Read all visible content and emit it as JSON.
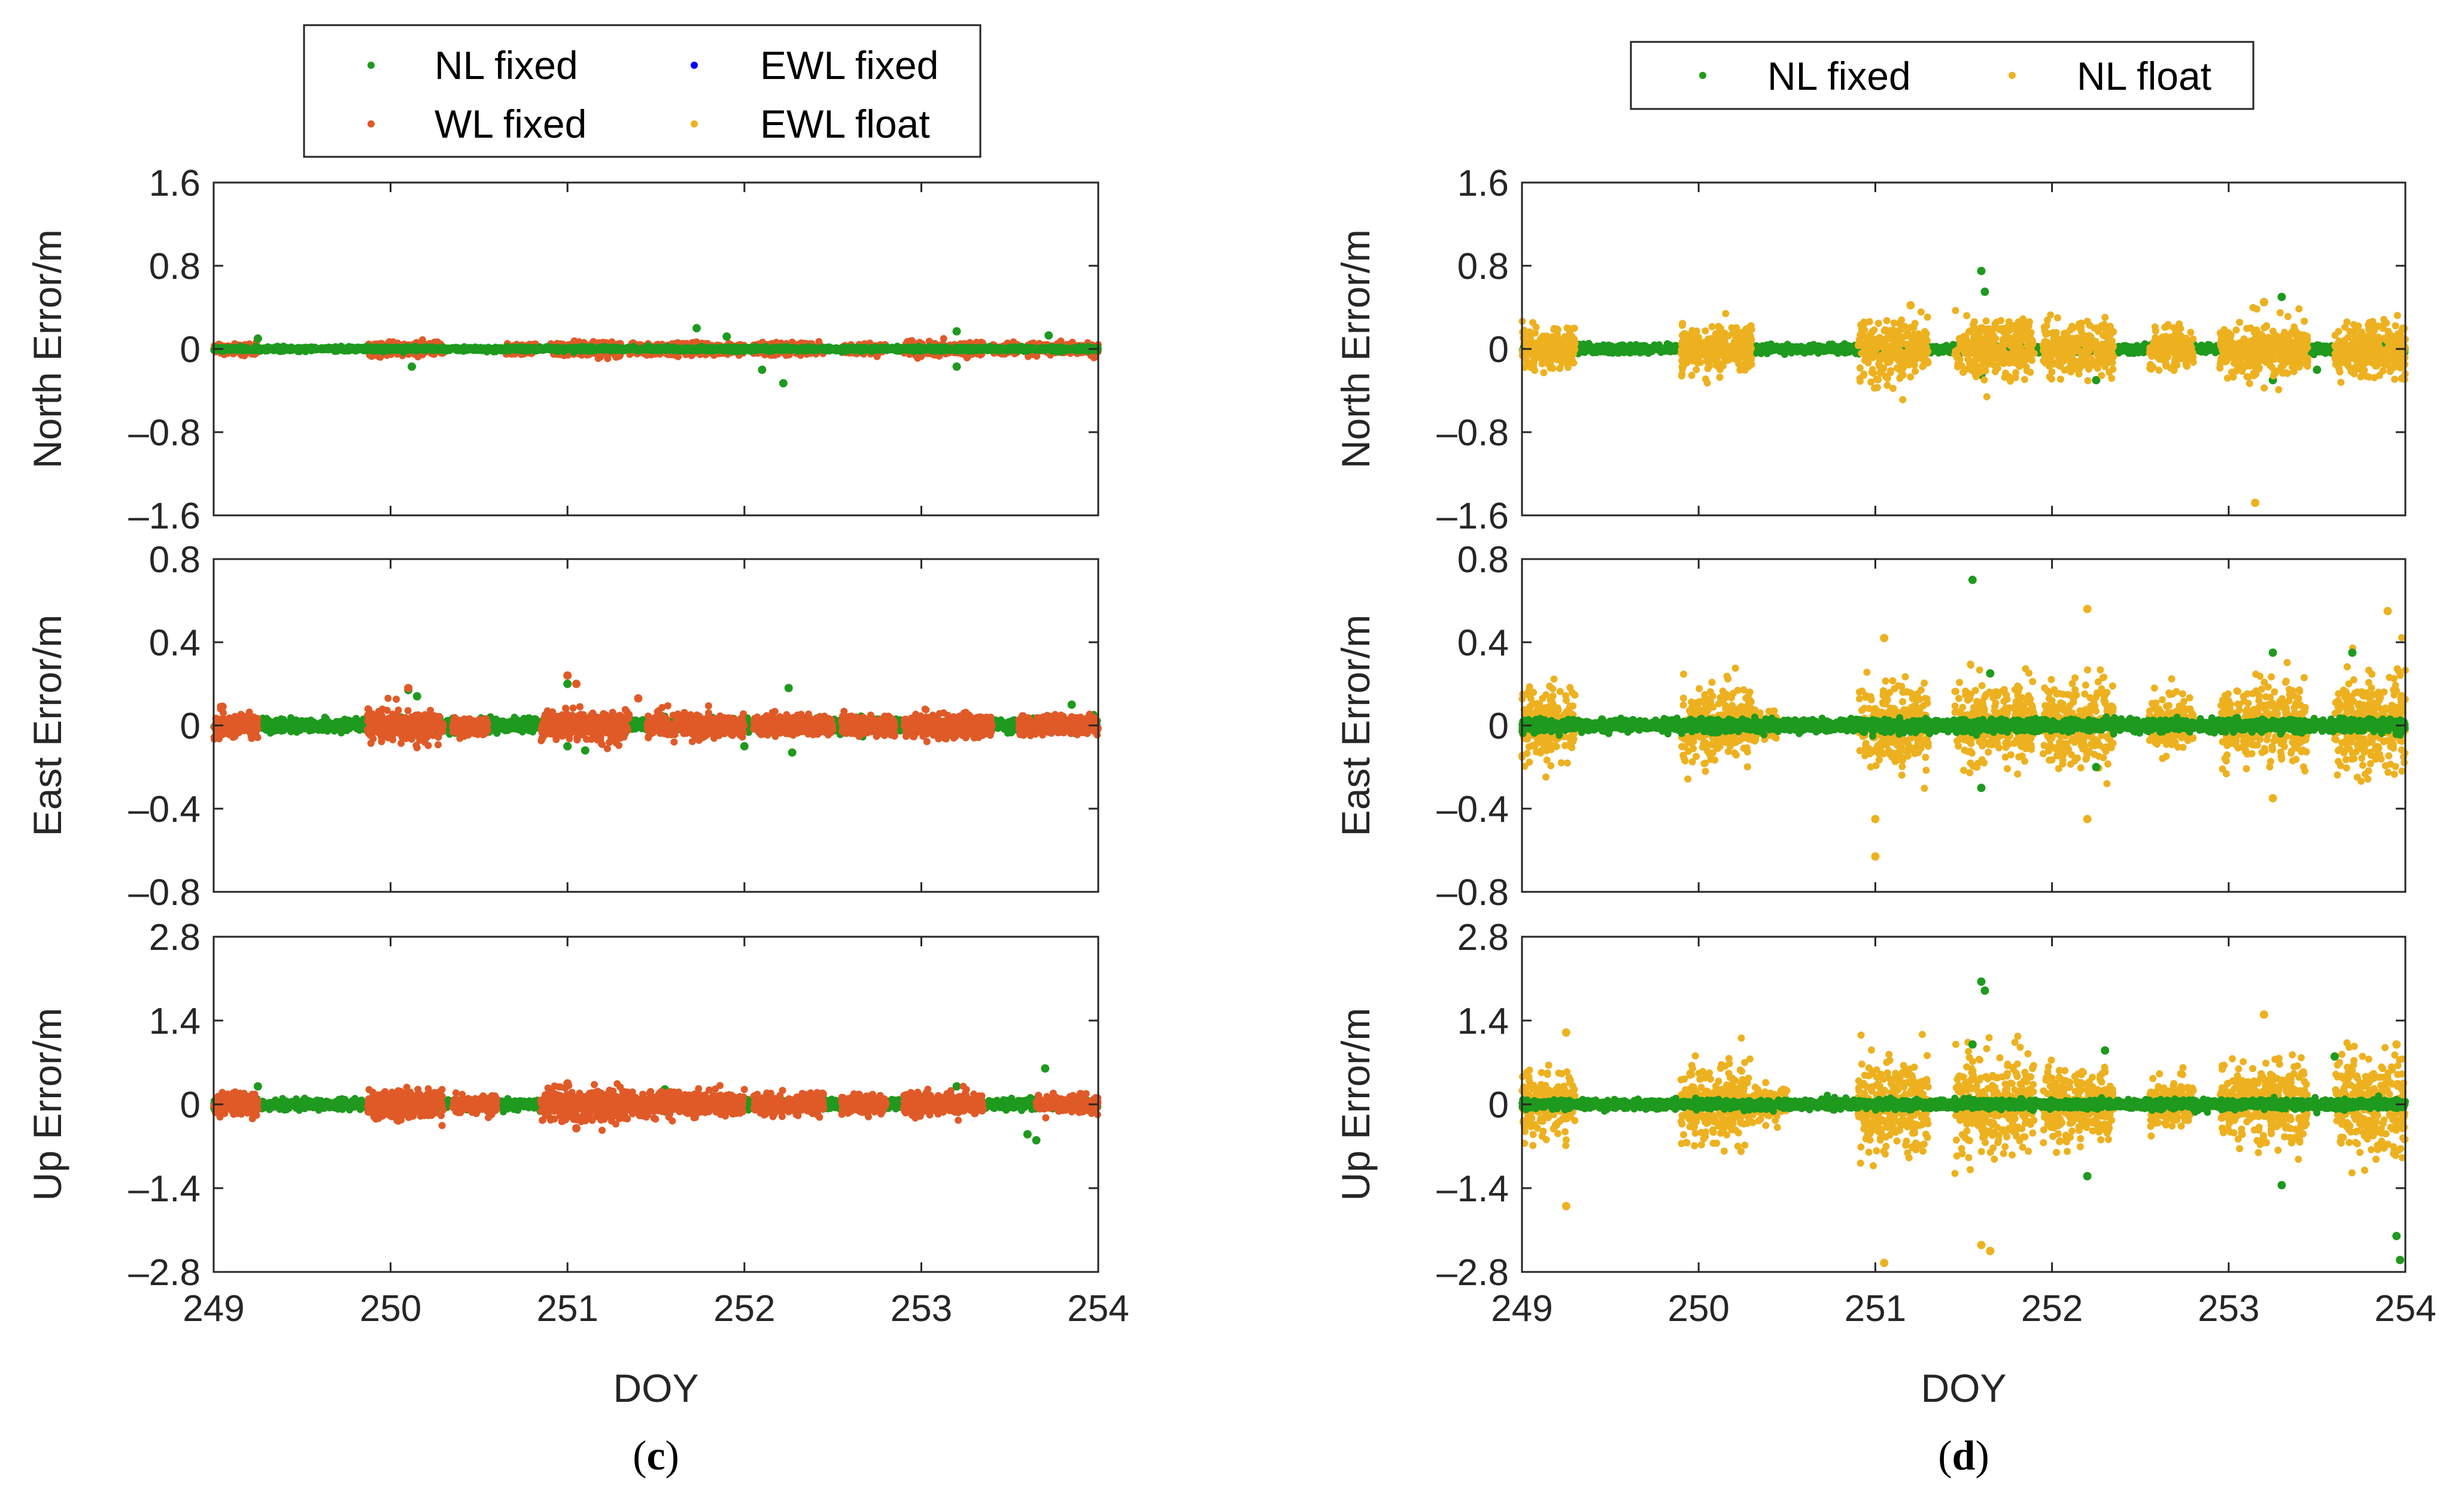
{
  "colors": {
    "nl_fixed": "#1e9a1e",
    "wl_fixed": "#e05a28",
    "ewl_fixed": "#0000ff",
    "ewl_float": "#edb120",
    "nl_float": "#edb120",
    "axis": "#262626"
  },
  "chart_data": [
    {
      "id": "c",
      "type": "scatter",
      "caption_letter": "c",
      "xlabel": "DOY",
      "xlim": [
        249,
        254
      ],
      "xticks": [
        "249",
        "250",
        "251",
        "252",
        "253",
        "254"
      ],
      "legend": {
        "position": "top",
        "entries": [
          {
            "label": "NL fixed",
            "color_key": "nl_fixed"
          },
          {
            "label": "EWL fixed",
            "color_key": "ewl_fixed"
          },
          {
            "label": "WL fixed",
            "color_key": "wl_fixed"
          },
          {
            "label": "EWL float",
            "color_key": "ewl_float"
          }
        ]
      },
      "panels": [
        {
          "ylabel": "North Error/m",
          "ylim": [
            -1.6,
            1.6
          ],
          "yticks": [
            "1.6",
            "0.8",
            "0",
            "–0.8",
            "–1.6"
          ],
          "series": [
            {
              "name": "WL fixed",
              "color_key": "wl_fixed",
              "segments": [
                [
                  249.0,
                  249.25,
                  0.05
                ],
                [
                  249.87,
                  250.3,
                  0.07
                ],
                [
                  250.65,
                  250.82,
                  0.05
                ],
                [
                  250.9,
                  251.3,
                  0.08
                ],
                [
                  251.35,
                  252.0,
                  0.06
                ],
                [
                  252.05,
                  252.45,
                  0.06
                ],
                [
                  252.55,
                  252.8,
                  0.05
                ],
                [
                  252.9,
                  253.35,
                  0.07
                ],
                [
                  253.4,
                  253.55,
                  0.05
                ],
                [
                  253.6,
                  254.0,
                  0.06
                ]
              ],
              "outliers": []
            },
            {
              "name": "NL fixed",
              "color_key": "nl_fixed",
              "segments": [
                [
                  249.0,
                  254.0,
                  0.02
                ]
              ],
              "outliers": [
                [
                  249.25,
                  0.1
                ],
                [
                  250.12,
                  -0.17
                ],
                [
                  251.73,
                  0.2
                ],
                [
                  251.9,
                  0.12
                ],
                [
                  252.1,
                  -0.2
                ],
                [
                  252.22,
                  -0.33
                ],
                [
                  253.2,
                  0.17
                ],
                [
                  253.2,
                  -0.17
                ],
                [
                  253.72,
                  0.13
                ]
              ]
            }
          ]
        },
        {
          "ylabel": "East Error/m",
          "ylim": [
            -0.8,
            0.8
          ],
          "yticks": [
            "0.8",
            "0.4",
            "0",
            "–0.4",
            "–0.8"
          ],
          "series": [
            {
              "name": "NL fixed",
              "color_key": "nl_fixed",
              "segments": [
                [
                  249.0,
                  254.0,
                  0.03
                ]
              ],
              "outliers": [
                [
                  250.1,
                  0.17
                ],
                [
                  250.15,
                  0.14
                ],
                [
                  251.0,
                  0.2
                ],
                [
                  251.0,
                  -0.1
                ],
                [
                  251.1,
                  -0.12
                ],
                [
                  252.0,
                  -0.1
                ],
                [
                  252.25,
                  0.18
                ],
                [
                  252.27,
                  -0.13
                ],
                [
                  253.85,
                  0.1
                ]
              ]
            },
            {
              "name": "WL fixed",
              "color_key": "wl_fixed",
              "segments": [
                [
                  249.0,
                  249.25,
                  0.06
                ],
                [
                  249.87,
                  250.3,
                  0.08
                ],
                [
                  250.35,
                  250.55,
                  0.05
                ],
                [
                  250.85,
                  251.35,
                  0.08
                ],
                [
                  251.45,
                  252.0,
                  0.06
                ],
                [
                  252.05,
                  252.5,
                  0.05
                ],
                [
                  252.55,
                  252.85,
                  0.05
                ],
                [
                  252.9,
                  253.4,
                  0.06
                ],
                [
                  253.55,
                  254.0,
                  0.05
                ]
              ],
              "outliers": [
                [
                  249.05,
                  0.09
                ],
                [
                  250.1,
                  0.18
                ],
                [
                  251.0,
                  0.24
                ],
                [
                  251.05,
                  0.2
                ],
                [
                  251.4,
                  0.13
                ]
              ]
            }
          ]
        },
        {
          "ylabel": "Up Error/m",
          "ylim": [
            -2.8,
            2.8
          ],
          "yticks": [
            "2.8",
            "1.4",
            "0",
            "–1.4",
            "–2.8"
          ],
          "series": [
            {
              "name": "NL fixed",
              "color_key": "nl_fixed",
              "segments": [
                [
                  249.0,
                  254.0,
                  0.08
                ]
              ],
              "outliers": [
                [
                  249.25,
                  0.3
                ],
                [
                  251.55,
                  0.25
                ],
                [
                  253.2,
                  0.3
                ],
                [
                  253.6,
                  -0.5
                ],
                [
                  253.7,
                  0.6
                ],
                [
                  253.65,
                  -0.6
                ]
              ]
            },
            {
              "name": "WL fixed",
              "color_key": "wl_fixed",
              "segments": [
                [
                  249.0,
                  249.25,
                  0.2
                ],
                [
                  249.87,
                  250.3,
                  0.25
                ],
                [
                  250.35,
                  250.6,
                  0.15
                ],
                [
                  250.85,
                  251.35,
                  0.3
                ],
                [
                  251.35,
                  252.0,
                  0.22
                ],
                [
                  252.05,
                  252.45,
                  0.2
                ],
                [
                  252.55,
                  252.8,
                  0.15
                ],
                [
                  252.9,
                  253.35,
                  0.2
                ],
                [
                  253.65,
                  254.0,
                  0.15
                ]
              ],
              "outliers": [
                [
                  251.0,
                  0.35
                ],
                [
                  251.05,
                  -0.4
                ]
              ]
            }
          ]
        }
      ]
    },
    {
      "id": "d",
      "type": "scatter",
      "caption_letter": "d",
      "xlabel": "DOY",
      "xlim": [
        249,
        254
      ],
      "xticks": [
        "249",
        "250",
        "251",
        "252",
        "253",
        "254"
      ],
      "legend": {
        "position": "top",
        "entries": [
          {
            "label": "NL fixed",
            "color_key": "nl_fixed"
          },
          {
            "label": "NL float",
            "color_key": "nl_float"
          }
        ]
      },
      "panels": [
        {
          "ylabel": "North Error/m",
          "ylim": [
            -1.6,
            1.6
          ],
          "yticks": [
            "1.6",
            "0.8",
            "0",
            "–0.8",
            "–1.6"
          ],
          "series": [
            {
              "name": "NL fixed",
              "color_key": "nl_fixed",
              "segments": [
                [
                  249.0,
                  254.0,
                  0.04
                ]
              ],
              "outliers": [
                [
                  251.6,
                  0.75
                ],
                [
                  251.62,
                  0.55
                ],
                [
                  251.6,
                  -0.25
                ],
                [
                  252.25,
                  -0.3
                ],
                [
                  253.2,
                  0.45
                ],
                [
                  253.3,
                  0.5
                ],
                [
                  253.25,
                  -0.3
                ],
                [
                  253.5,
                  -0.2
                ]
              ]
            },
            {
              "name": "NL float",
              "color_key": "nl_float",
              "segments": [
                [
                  249.0,
                  249.3,
                  0.22
                ],
                [
                  249.9,
                  250.3,
                  0.25
                ],
                [
                  250.9,
                  251.3,
                  0.3
                ],
                [
                  251.45,
                  251.9,
                  0.3
                ],
                [
                  251.95,
                  252.35,
                  0.28
                ],
                [
                  252.55,
                  252.8,
                  0.2
                ],
                [
                  252.95,
                  253.45,
                  0.28
                ],
                [
                  253.6,
                  254.0,
                  0.3
                ]
              ],
              "outliers": [
                [
                  253.15,
                  -1.48
                ],
                [
                  251.2,
                  0.42
                ],
                [
                  253.2,
                  0.45
                ]
              ]
            }
          ]
        },
        {
          "ylabel": "East Error/m",
          "ylim": [
            -0.8,
            0.8
          ],
          "yticks": [
            "0.8",
            "0.4",
            "0",
            "–0.4",
            "–0.8"
          ],
          "series": [
            {
              "name": "NL float",
              "color_key": "nl_float",
              "segments": [
                [
                  249.0,
                  249.3,
                  0.18
                ],
                [
                  249.9,
                  250.3,
                  0.2
                ],
                [
                  250.3,
                  250.45,
                  0.08
                ],
                [
                  250.9,
                  251.3,
                  0.22
                ],
                [
                  251.45,
                  251.9,
                  0.22
                ],
                [
                  251.95,
                  252.35,
                  0.22
                ],
                [
                  252.55,
                  252.8,
                  0.15
                ],
                [
                  252.95,
                  253.45,
                  0.2
                ],
                [
                  253.6,
                  254.0,
                  0.25
                ]
              ],
              "outliers": [
                [
                  251.0,
                  -0.63
                ],
                [
                  251.0,
                  -0.45
                ],
                [
                  252.2,
                  0.56
                ],
                [
                  252.2,
                  -0.45
                ],
                [
                  253.9,
                  0.55
                ],
                [
                  253.25,
                  -0.35
                ],
                [
                  251.05,
                  0.42
                ]
              ]
            },
            {
              "name": "NL fixed",
              "color_key": "nl_fixed",
              "segments": [
                [
                  249.0,
                  254.0,
                  0.03
                ]
              ],
              "outliers": [
                [
                  251.55,
                  0.7
                ],
                [
                  251.6,
                  -0.3
                ],
                [
                  253.25,
                  0.35
                ],
                [
                  253.7,
                  0.35
                ],
                [
                  251.65,
                  0.25
                ],
                [
                  252.25,
                  -0.2
                ]
              ]
            }
          ]
        },
        {
          "ylabel": "Up Error/m",
          "ylim": [
            -2.8,
            2.8
          ],
          "yticks": [
            "2.8",
            "1.4",
            "0",
            "–1.4",
            "–2.8"
          ],
          "series": [
            {
              "name": "NL float",
              "color_key": "nl_float",
              "segments": [
                [
                  249.0,
                  249.3,
                  0.6
                ],
                [
                  249.9,
                  250.3,
                  0.7
                ],
                [
                  250.3,
                  250.5,
                  0.3
                ],
                [
                  250.9,
                  251.3,
                  0.9
                ],
                [
                  251.45,
                  251.9,
                  0.9
                ],
                [
                  251.95,
                  252.35,
                  0.7
                ],
                [
                  252.55,
                  252.8,
                  0.4
                ],
                [
                  252.95,
                  253.45,
                  0.7
                ],
                [
                  253.6,
                  254.0,
                  0.9
                ]
              ],
              "outliers": [
                [
                  249.25,
                  -1.7
                ],
                [
                  251.05,
                  -2.65
                ],
                [
                  251.65,
                  -2.45
                ],
                [
                  251.6,
                  -2.35
                ],
                [
                  253.2,
                  1.5
                ],
                [
                  253.95,
                  1.0
                ],
                [
                  249.25,
                  1.2
                ]
              ]
            },
            {
              "name": "NL fixed",
              "color_key": "nl_fixed",
              "segments": [
                [
                  249.0,
                  254.0,
                  0.08
                ]
              ],
              "outliers": [
                [
                  251.6,
                  2.05
                ],
                [
                  251.62,
                  1.9
                ],
                [
                  251.55,
                  1.0
                ],
                [
                  252.3,
                  0.9
                ],
                [
                  252.2,
                  -1.2
                ],
                [
                  253.95,
                  -2.2
                ],
                [
                  253.97,
                  -2.6
                ],
                [
                  253.3,
                  -1.35
                ],
                [
                  253.6,
                  0.8
                ]
              ]
            }
          ]
        }
      ]
    }
  ]
}
